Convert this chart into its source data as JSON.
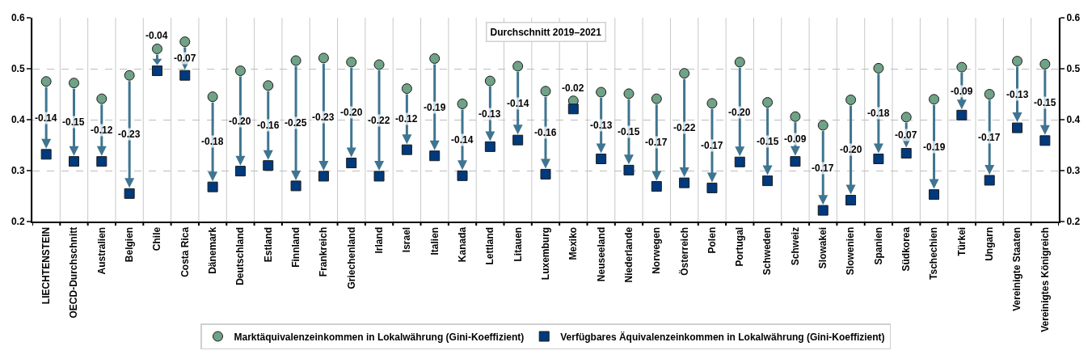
{
  "chart_data": {
    "type": "scatter",
    "categories": [
      "LIECHTENSTEIN",
      "OECD-Durchschnitt",
      "Australien",
      "Belgien",
      "Chile",
      "Costa Rica",
      "Dänemark",
      "Deutschland",
      "Estland",
      "Finnland",
      "Frankreich",
      "Griechenland",
      "Irland",
      "Israel",
      "Italien",
      "Kanada",
      "Lettland",
      "Litauen",
      "Luxemburg",
      "Mexiko",
      "Neuseeland",
      "Niederlande",
      "Norwegen",
      "Österreich",
      "Polen",
      "Portugal",
      "Schweden",
      "Schweiz",
      "Slowakei",
      "Slowenien",
      "Spanien",
      "Südkorea",
      "Tschechien",
      "Türkei",
      "Ungarn",
      "Vereinigte Staaten",
      "Vereinigtes Königreich"
    ],
    "series": [
      {
        "name": "Marktäquivalenzeinkommen in Lokalwährung (Gini-Koeffizient)",
        "color": "#6fa287",
        "marker": "circle",
        "values": [
          0.475,
          0.472,
          0.441,
          0.487,
          0.539,
          0.553,
          0.445,
          0.496,
          0.467,
          0.516,
          0.521,
          0.513,
          0.508,
          0.461,
          0.52,
          0.431,
          0.476,
          0.505,
          0.456,
          0.437,
          0.454,
          0.451,
          0.441,
          0.491,
          0.432,
          0.513,
          0.434,
          0.406,
          0.389,
          0.439,
          0.501,
          0.405,
          0.44,
          0.503,
          0.45,
          0.515,
          0.509
        ]
      },
      {
        "name": "Verfügbares Äquivalenzeinkommen in Lokalwährung (Gini-Koeffizient)",
        "color": "#003a7d",
        "marker": "square",
        "values": [
          0.332,
          0.318,
          0.318,
          0.255,
          0.496,
          0.487,
          0.268,
          0.299,
          0.31,
          0.27,
          0.289,
          0.315,
          0.289,
          0.341,
          0.329,
          0.29,
          0.347,
          0.36,
          0.293,
          0.421,
          0.323,
          0.301,
          0.269,
          0.276,
          0.266,
          0.317,
          0.28,
          0.318,
          0.222,
          0.242,
          0.323,
          0.334,
          0.253,
          0.409,
          0.281,
          0.384,
          0.359
        ]
      }
    ],
    "ylim": [
      0.2,
      0.6
    ],
    "yticks": [
      0.2,
      0.3,
      0.4,
      0.5,
      0.6
    ],
    "y2lim": [
      0.2,
      0.6
    ],
    "y2ticks": [
      0.2,
      0.3,
      0.4,
      0.5,
      0.6
    ],
    "grid": true,
    "legend": "bottom",
    "annotations": [
      "Durchschnitt 2019–2021",
      "-0.14",
      "-0.15",
      "-0.12",
      "-0.23",
      "-0.04",
      "-0.07",
      "-0.18",
      "-0.20",
      "-0.16",
      "-0.25",
      "-0.23",
      "-0.20",
      "-0.22",
      "-0.12",
      "-0.19",
      "-0.14",
      "-0.13",
      "-0.14",
      "-0.16",
      "-0.02",
      "-0.13",
      "-0.15",
      "-0.17",
      "-0.22",
      "-0.17",
      "-0.20",
      "-0.15",
      "-0.09",
      "-0.17",
      "-0.20",
      "-0.18",
      "-0.07",
      "-0.19",
      "-0.09",
      "-0.17",
      "-0.13",
      "-0.15"
    ]
  }
}
